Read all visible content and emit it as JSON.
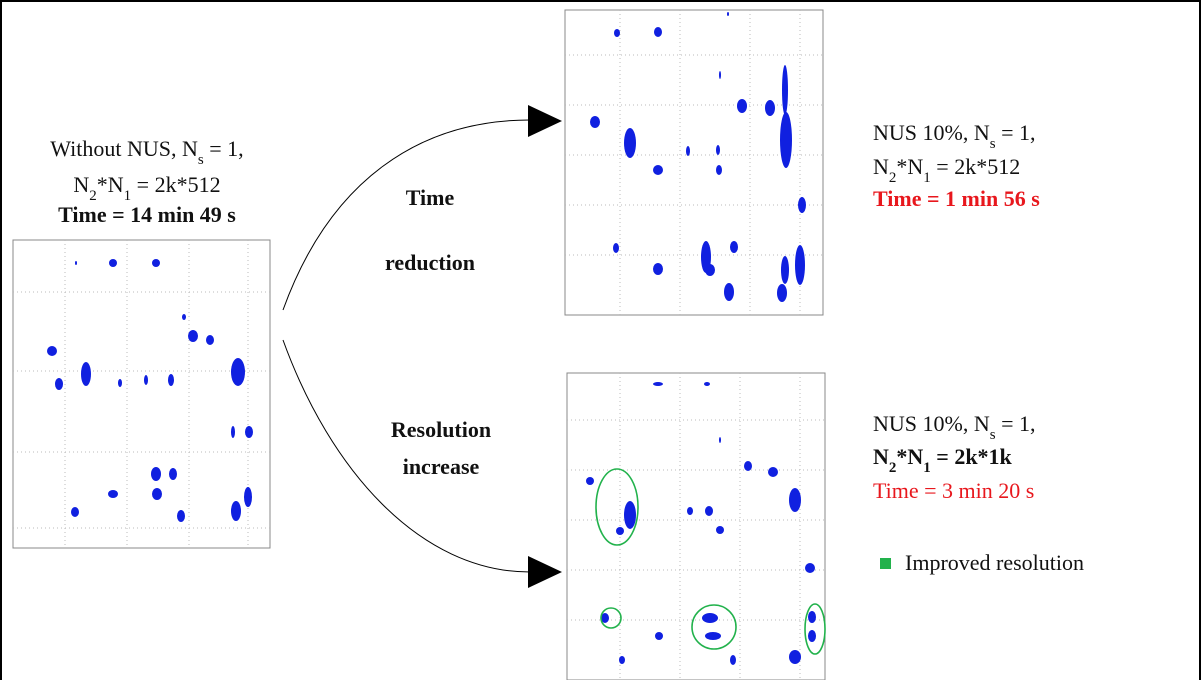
{
  "left": {
    "lines": [
      [
        "Without NUS, N",
        "s",
        " = 1,"
      ],
      [
        "N",
        "2",
        "*N",
        "1",
        " = 2k*512"
      ],
      [
        "Time = 14 min 49 s"
      ]
    ]
  },
  "arrows": {
    "top": {
      "lines": [
        "Time",
        "reduction"
      ]
    },
    "bottom": {
      "lines": [
        "Resolution",
        "increase"
      ]
    }
  },
  "top_right": {
    "lines": [
      [
        "NUS 10%, N",
        "s",
        " = 1,"
      ],
      [
        "N",
        "2",
        "*N",
        "1",
        " = 2k*512"
      ],
      [
        "Time = 1 min 56 s"
      ]
    ]
  },
  "bottom_right": {
    "lines": [
      [
        "NUS 10%, N",
        "s",
        " = 1,"
      ],
      [
        "N",
        "2",
        "*N",
        "1",
        " = 2k*1k"
      ],
      [
        "Time = 3 min 20 s"
      ]
    ],
    "legend": "Improved resolution"
  }
}
